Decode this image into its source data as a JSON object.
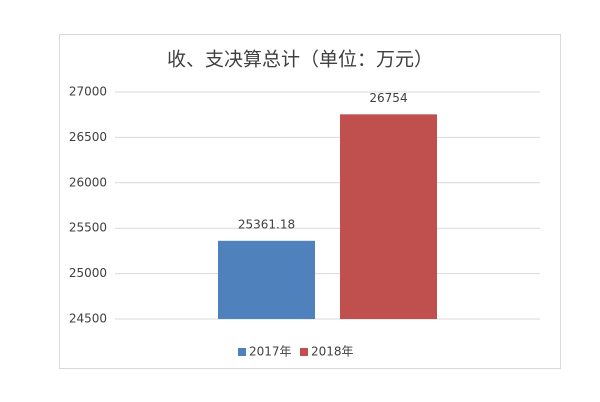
{
  "chart_data": {
    "type": "bar",
    "title": "收、支决算总计（单位：万元）",
    "categories": [
      null
    ],
    "series": [
      {
        "name": "2017年",
        "color": "#4f81bd",
        "values": [
          25361.18
        ]
      },
      {
        "name": "2018年",
        "color": "#c0504d",
        "values": [
          26754
        ]
      }
    ],
    "ylim": [
      24500,
      27000
    ],
    "yticks": [
      24500,
      25000,
      25500,
      26000,
      26500,
      27000
    ],
    "grid": true,
    "legend": "bottom"
  }
}
